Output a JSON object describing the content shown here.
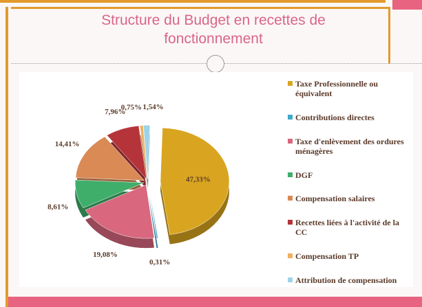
{
  "chart_data": {
    "type": "pie",
    "title": "Structure du Budget en recettes de fonctionnement",
    "categories": [
      "Taxe Professionnelle ou équivalent",
      "Contributions directes",
      "Taxe d'enlèvement des ordures ménagères",
      "DGF",
      "Compensation salaires",
      "Recettes liées à l'activité de la CC",
      "Compensation TP",
      "Attribution de compensation"
    ],
    "values": [
      47.33,
      0.31,
      19.08,
      8.61,
      14.41,
      7.96,
      0.75,
      1.54
    ],
    "value_labels": [
      "47,33%",
      "0,31%",
      "19,08%",
      "8,61%",
      "14,41%",
      "7,96%",
      "0,75%",
      "1,54%"
    ],
    "colors": [
      "#d9a520",
      "#3fa9c9",
      "#d9677e",
      "#3fae6a",
      "#d98a55",
      "#b5343a",
      "#efb060",
      "#9ed3e6"
    ]
  }
}
